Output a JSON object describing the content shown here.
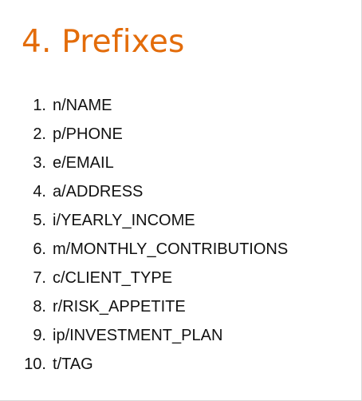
{
  "section": {
    "title": "4. Prefixes"
  },
  "prefixes": [
    {
      "number": "1.",
      "text": "n/NAME"
    },
    {
      "number": "2.",
      "text": "p/PHONE"
    },
    {
      "number": "3.",
      "text": "e/EMAIL"
    },
    {
      "number": "4.",
      "text": "a/ADDRESS"
    },
    {
      "number": "5.",
      "text": "i/YEARLY_INCOME"
    },
    {
      "number": "6.",
      "text": "m/MONTHLY_CONTRIBUTIONS"
    },
    {
      "number": "7.",
      "text": "c/CLIENT_TYPE"
    },
    {
      "number": "8.",
      "text": "r/RISK_APPETITE"
    },
    {
      "number": "9.",
      "text": "ip/INVESTMENT_PLAN"
    },
    {
      "number": "10.",
      "text": "t/TAG"
    }
  ],
  "colors": {
    "heading": "#e36c0a",
    "body_text": "#111111",
    "background": "#ffffff"
  }
}
